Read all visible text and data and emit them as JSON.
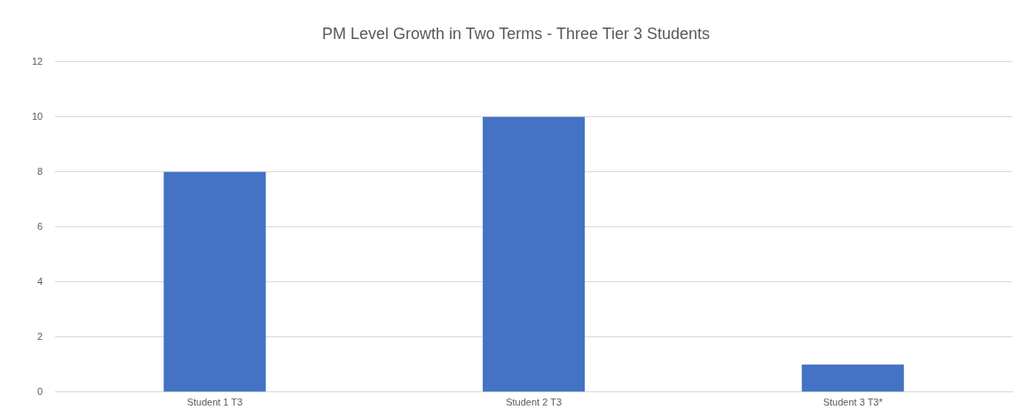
{
  "chart_data": {
    "type": "bar",
    "title": "PM Level Growth in Two Terms - Three Tier 3 Students",
    "categories": [
      "Student 1 T3",
      "Student 2 T3",
      "Student 3 T3*"
    ],
    "values": [
      8,
      10,
      1
    ],
    "color": "#4472c4",
    "ylim": [
      0,
      12
    ],
    "yticks": [
      0,
      2,
      4,
      6,
      8,
      10,
      12
    ],
    "grid": "y",
    "legend": false
  }
}
